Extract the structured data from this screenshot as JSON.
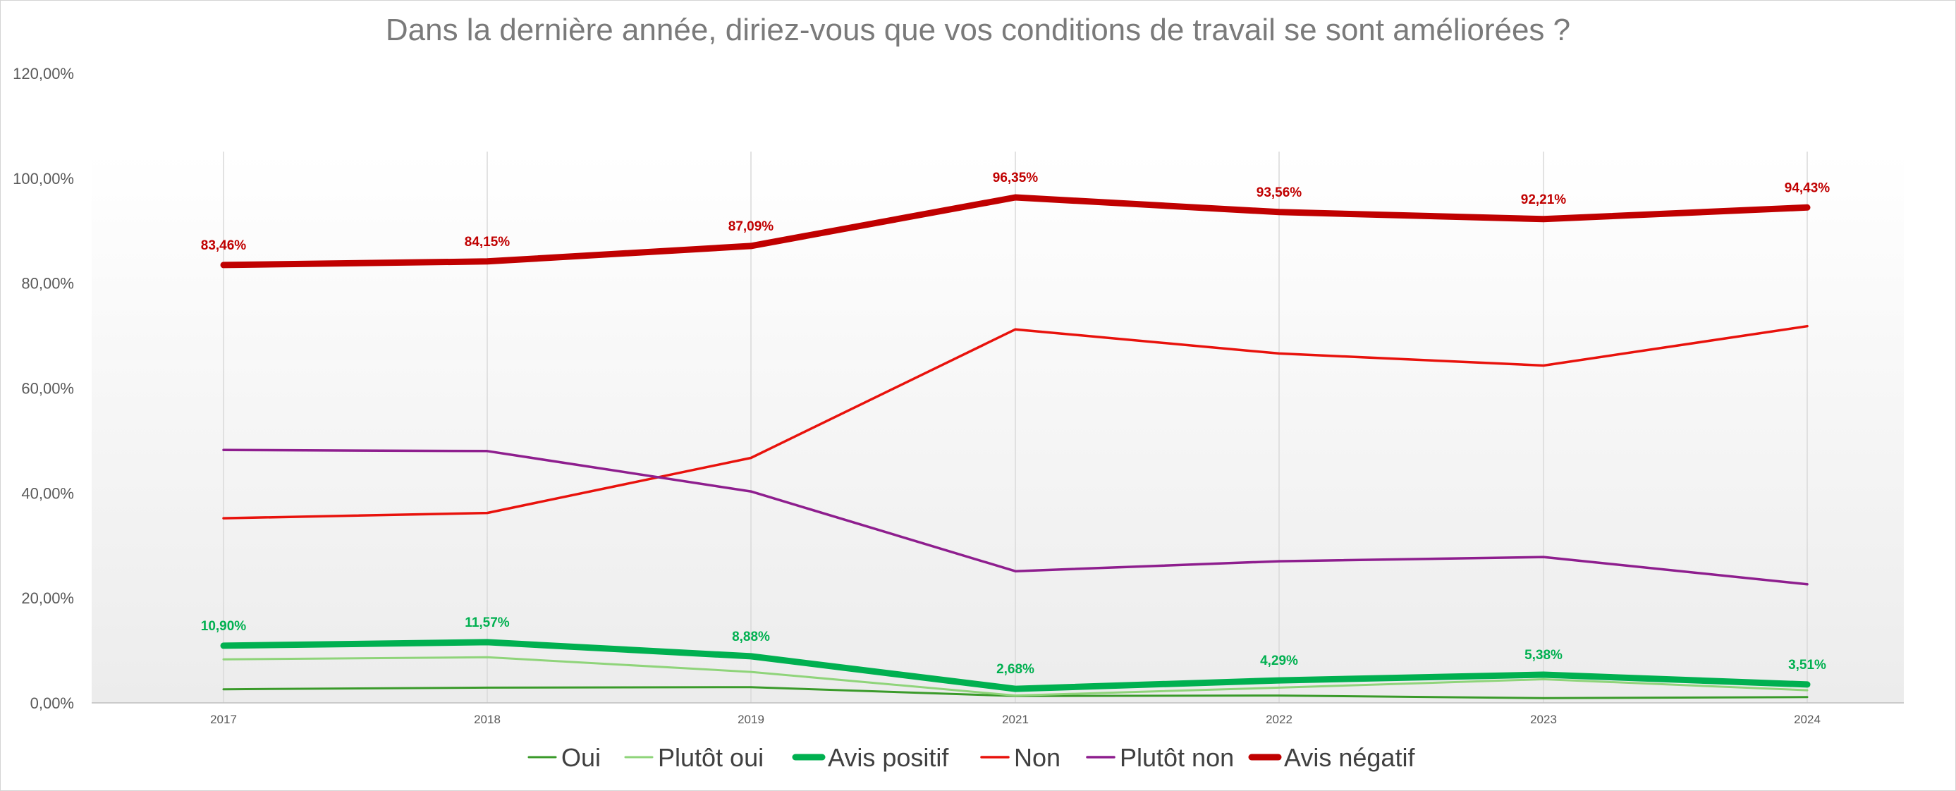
{
  "chart_data": {
    "type": "line",
    "title": "Dans la dernière année, diriez-vous que vos conditions de travail se sont améliorées ?",
    "xlabel": "",
    "ylabel": "",
    "categories": [
      "2017",
      "2018",
      "2019",
      "2021",
      "2022",
      "2023",
      "2024"
    ],
    "ylim": [
      0,
      120
    ],
    "yticks": [
      "0,00%",
      "20,00%",
      "40,00%",
      "60,00%",
      "80,00%",
      "100,00%",
      "120,00%"
    ],
    "grid": "vertical",
    "legend_position": "bottom",
    "series": [
      {
        "name": "Oui",
        "color": "#3a9a2a",
        "weight": "thin",
        "values": [
          2.6,
          2.9,
          3.0,
          1.3,
          1.4,
          0.9,
          1.1
        ],
        "labels": null
      },
      {
        "name": "Plutôt oui",
        "color": "#8fd47a",
        "weight": "thin",
        "values": [
          8.3,
          8.7,
          5.9,
          1.4,
          2.9,
          4.5,
          2.4
        ],
        "labels": null
      },
      {
        "name": "Avis positif",
        "color": "#00b050",
        "weight": "thick",
        "values": [
          10.9,
          11.57,
          8.88,
          2.68,
          4.29,
          5.38,
          3.51
        ],
        "labels": [
          "10,90%",
          "11,57%",
          "8,88%",
          "2,68%",
          "4,29%",
          "5,38%",
          "3,51%"
        ]
      },
      {
        "name": "Non",
        "color": "#e8120c",
        "weight": "medium",
        "values": [
          35.2,
          36.2,
          46.7,
          71.2,
          66.6,
          64.3,
          71.8
        ],
        "labels": null
      },
      {
        "name": "Plutôt non",
        "color": "#8e1e8e",
        "weight": "medium",
        "values": [
          48.2,
          48.0,
          40.3,
          25.1,
          27.0,
          27.8,
          22.6
        ],
        "labels": null
      },
      {
        "name": "Avis négatif",
        "color": "#c00000",
        "weight": "thick",
        "values": [
          83.46,
          84.15,
          87.09,
          96.35,
          93.56,
          92.21,
          94.43
        ],
        "labels": [
          "83,46%",
          "84,15%",
          "87,09%",
          "96,35%",
          "93,56%",
          "92,21%",
          "94,43%"
        ]
      }
    ]
  }
}
